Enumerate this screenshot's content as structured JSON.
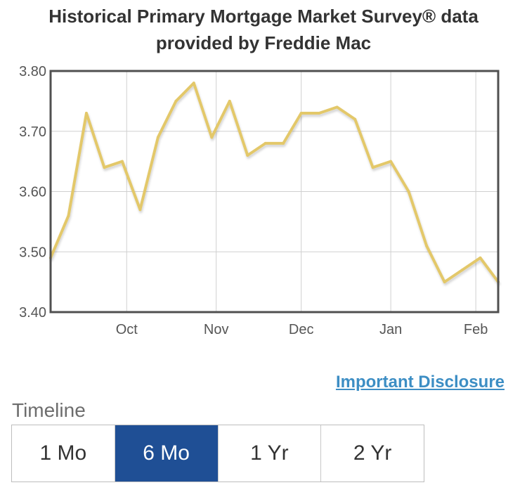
{
  "title_line1": "Historical Primary Mortgage Market Survey® data",
  "title_line2": "provided by Freddie Mac",
  "disclosure_link": "Important Disclosure",
  "timeline": {
    "label": "Timeline",
    "options": [
      "1 Mo",
      "6 Mo",
      "1 Yr",
      "2 Yr"
    ],
    "selected_index": 1
  },
  "colors": {
    "line": "#e3c86a",
    "selected_button": "#1f4f95",
    "link": "#3d8ec4"
  },
  "chart_data": {
    "type": "line",
    "title": "Historical Primary Mortgage Market Survey® data provided by Freddie Mac",
    "xlabel": "",
    "ylabel": "",
    "ylim": [
      3.4,
      3.8
    ],
    "y_ticks": [
      "3.40",
      "3.50",
      "3.60",
      "3.70",
      "3.80"
    ],
    "x_tick_labels": [
      "Oct",
      "Nov",
      "Dec",
      "Jan",
      "Feb"
    ],
    "x_tick_positions": [
      4.25,
      9.25,
      14,
      19,
      23.75
    ],
    "grid": true,
    "legend": "none",
    "series": [
      {
        "values": [
          3.49,
          3.56,
          3.73,
          3.64,
          3.65,
          3.57,
          3.69,
          3.75,
          3.78,
          3.69,
          3.75,
          3.66,
          3.68,
          3.68,
          3.73,
          3.73,
          3.74,
          3.72,
          3.64,
          3.65,
          3.6,
          3.51,
          3.45,
          3.47,
          3.49,
          3.45
        ]
      }
    ]
  }
}
